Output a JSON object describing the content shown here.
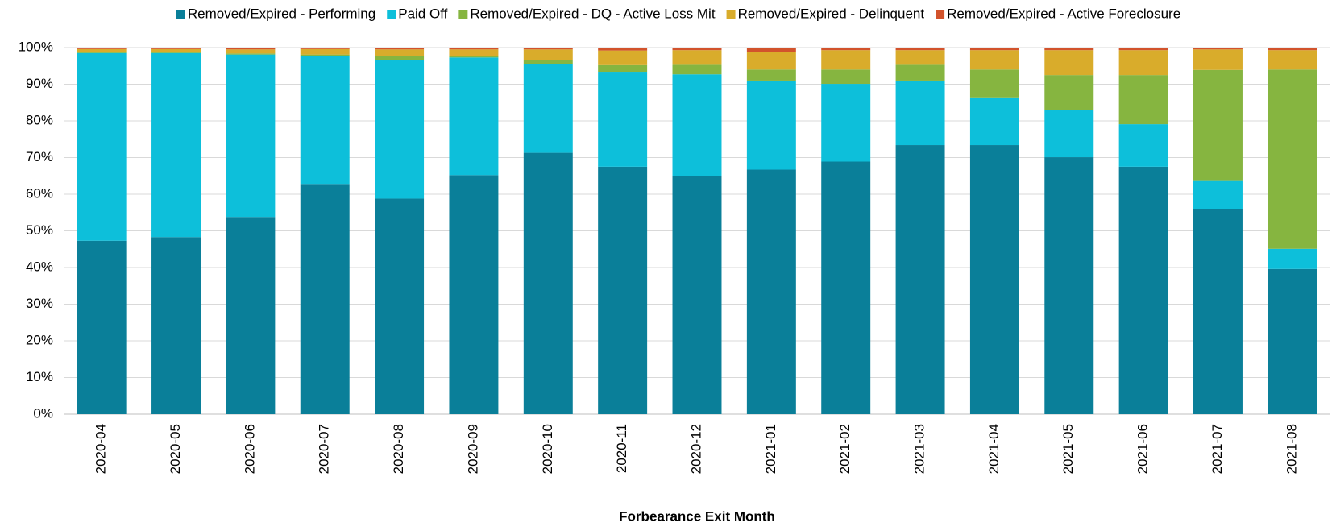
{
  "chart_data": {
    "type": "stacked_bar",
    "x_label": "Forbearance Exit Month",
    "categories": [
      "2020-04",
      "2020-05",
      "2020-06",
      "2020-07",
      "2020-08",
      "2020-09",
      "2020-10",
      "2020-11",
      "2020-12",
      "2021-01",
      "2021-02",
      "2021-03",
      "2021-04",
      "2021-05",
      "2021-06",
      "2021-07",
      "2021-08"
    ],
    "series": [
      {
        "name": "Removed/Expired - Performing",
        "color": "#0a7f99",
        "values": [
          47.3,
          48.3,
          53.8,
          62.8,
          58.8,
          65.2,
          71.3,
          67.5,
          65.0,
          66.7,
          68.9,
          73.4,
          73.4,
          70.1,
          67.5,
          55.9,
          39.6
        ]
      },
      {
        "name": "Paid Off",
        "color": "#0dbfda",
        "values": [
          51.2,
          50.2,
          44.3,
          35.0,
          37.7,
          32.1,
          24.1,
          25.9,
          27.7,
          24.3,
          21.2,
          17.6,
          12.8,
          12.8,
          11.6,
          7.7,
          5.5
        ]
      },
      {
        "name": "Removed/Expired - DQ - Active Loss Mit",
        "color": "#86b540",
        "values": [
          0.2,
          0.3,
          0.3,
          0.3,
          1.2,
          0.5,
          1.2,
          1.8,
          2.6,
          3.0,
          3.9,
          4.3,
          7.8,
          9.6,
          13.4,
          30.3,
          48.9
        ]
      },
      {
        "name": "Removed/Expired - Delinquent",
        "color": "#d9ac2b",
        "values": [
          0.9,
          0.8,
          1.1,
          1.5,
          1.8,
          1.7,
          2.9,
          4.0,
          4.0,
          4.7,
          5.3,
          4.0,
          5.3,
          6.8,
          6.8,
          5.6,
          5.3
        ]
      },
      {
        "name": "Removed/Expired - Active Foreclosure",
        "color": "#d2532c",
        "values": [
          0.4,
          0.4,
          0.5,
          0.4,
          0.5,
          0.5,
          0.5,
          0.8,
          0.7,
          1.3,
          0.7,
          0.7,
          0.7,
          0.7,
          0.7,
          0.5,
          0.7
        ]
      }
    ],
    "ylim": [
      0,
      100
    ],
    "yticks": [
      {
        "value": 0,
        "label": "0%"
      },
      {
        "value": 10,
        "label": "10%"
      },
      {
        "value": 20,
        "label": "20%"
      },
      {
        "value": 30,
        "label": "30%"
      },
      {
        "value": 40,
        "label": "40%"
      },
      {
        "value": 50,
        "label": "50%"
      },
      {
        "value": 60,
        "label": "60%"
      },
      {
        "value": 70,
        "label": "70%"
      },
      {
        "value": 80,
        "label": "80%"
      },
      {
        "value": 90,
        "label": "90%"
      },
      {
        "value": 100,
        "label": "100%"
      }
    ],
    "grid": true,
    "legend": "top"
  }
}
